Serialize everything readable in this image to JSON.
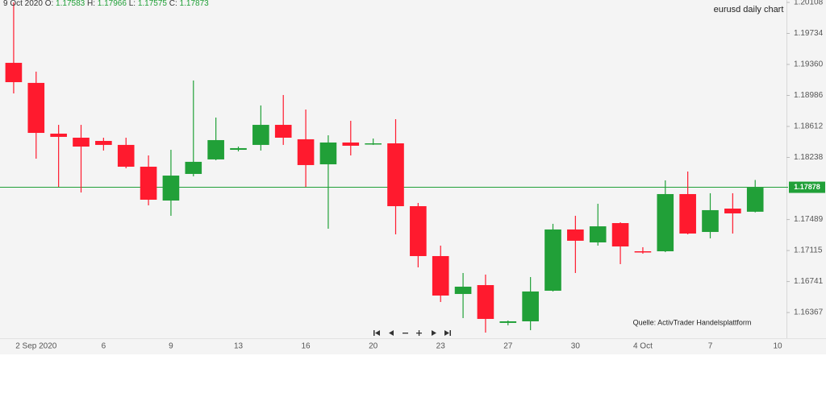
{
  "chart_data": {
    "type": "candlestick",
    "title": "eurusd daily chart",
    "source": "Quelle: ActivTrader Handelsplattform",
    "ohlc_legend": {
      "date": "9 Oct 2020",
      "fields": [
        {
          "label": "O:",
          "value": 1.17583
        },
        {
          "label": "H:",
          "value": 1.17966
        },
        {
          "label": "L:",
          "value": 1.17575
        },
        {
          "label": "C:",
          "value": 1.17873
        }
      ]
    },
    "categories": [
      null,
      "2 Sep 2020",
      null,
      null,
      "6",
      null,
      null,
      "9",
      null,
      null,
      "13",
      null,
      null,
      "16",
      null,
      null,
      "20",
      null,
      null,
      "23",
      null,
      null,
      "27",
      null,
      null,
      "30",
      null,
      null,
      "4 Oct",
      null,
      null,
      "7",
      null,
      null,
      "10"
    ],
    "open": [
      1.19379,
      1.19137,
      1.18525,
      1.18476,
      1.18437,
      1.18389,
      1.18126,
      1.17718,
      1.18039,
      1.18214,
      1.1833,
      1.18389,
      1.18631,
      1.18457,
      1.18155,
      1.18418,
      1.18398,
      1.18408,
      1.1765,
      1.17048,
      1.16591,
      1.16698,
      1.16242,
      1.16261,
      1.1663,
      1.17369,
      1.17213,
      1.17446,
      1.17106,
      1.17106,
      1.17796,
      1.17339,
      1.17621,
      1.17583,
      null
    ],
    "high": [
      1.20108,
      1.19273,
      1.18631,
      1.18631,
      1.18476,
      1.18476,
      1.18262,
      1.1833,
      1.19166,
      1.18719,
      1.18369,
      1.18865,
      1.18991,
      1.18816,
      1.18505,
      1.1868,
      1.18466,
      1.18699,
      1.17689,
      1.17174,
      1.16844,
      1.16825,
      1.16271,
      1.16795,
      1.17437,
      1.17534,
      1.17679,
      1.17456,
      1.17155,
      1.17961,
      1.18068,
      1.17806,
      1.17806,
      1.17966,
      null
    ],
    "low": [
      1.1901,
      1.18223,
      1.17883,
      1.17815,
      1.18321,
      1.18107,
      1.1766,
      1.17534,
      1.1801,
      1.18204,
      1.18311,
      1.18321,
      1.18389,
      1.17883,
      1.17378,
      1.18262,
      1.18389,
      1.1731,
      1.16912,
      1.16494,
      1.163,
      1.16125,
      1.16213,
      1.16154,
      1.16621,
      1.16844,
      1.17174,
      1.16951,
      1.17077,
      1.17096,
      1.1731,
      1.17262,
      1.1732,
      1.17575,
      null
    ],
    "close": [
      1.19146,
      1.18534,
      1.18486,
      1.18369,
      1.18389,
      1.18126,
      1.17728,
      1.18019,
      1.18185,
      1.18447,
      1.1835,
      1.18631,
      1.18476,
      1.18146,
      1.18418,
      1.18379,
      1.18408,
      1.1765,
      1.17048,
      1.16572,
      1.16679,
      1.1629,
      1.16261,
      1.16621,
      1.17369,
      1.17233,
      1.17407,
      1.17164,
      1.17096,
      1.17796,
      1.1732,
      1.17602,
      1.17563,
      1.17873,
      null
    ],
    "up_color": "#21a038",
    "down_color": "#ff1a2e",
    "last_price": 1.17878,
    "last_price_color": "#21a038",
    "ylim": [
      1.16057,
      1.20137
    ],
    "yticks": [
      {
        "value": 1.20108,
        "label": "1.20108"
      },
      {
        "value": 1.19734,
        "label": "1.19734"
      },
      {
        "value": 1.1936,
        "label": "1.19360"
      },
      {
        "value": 1.18986,
        "label": "1.18986"
      },
      {
        "value": 1.18612,
        "label": "1.18612"
      },
      {
        "value": 1.18238,
        "label": "1.18238"
      },
      {
        "value": 1.17489,
        "label": "1.17489"
      },
      {
        "value": 1.17115,
        "label": "1.17115"
      },
      {
        "value": 1.16741,
        "label": "1.16741"
      },
      {
        "value": 1.16367,
        "label": "1.16367"
      }
    ],
    "grid": false
  }
}
